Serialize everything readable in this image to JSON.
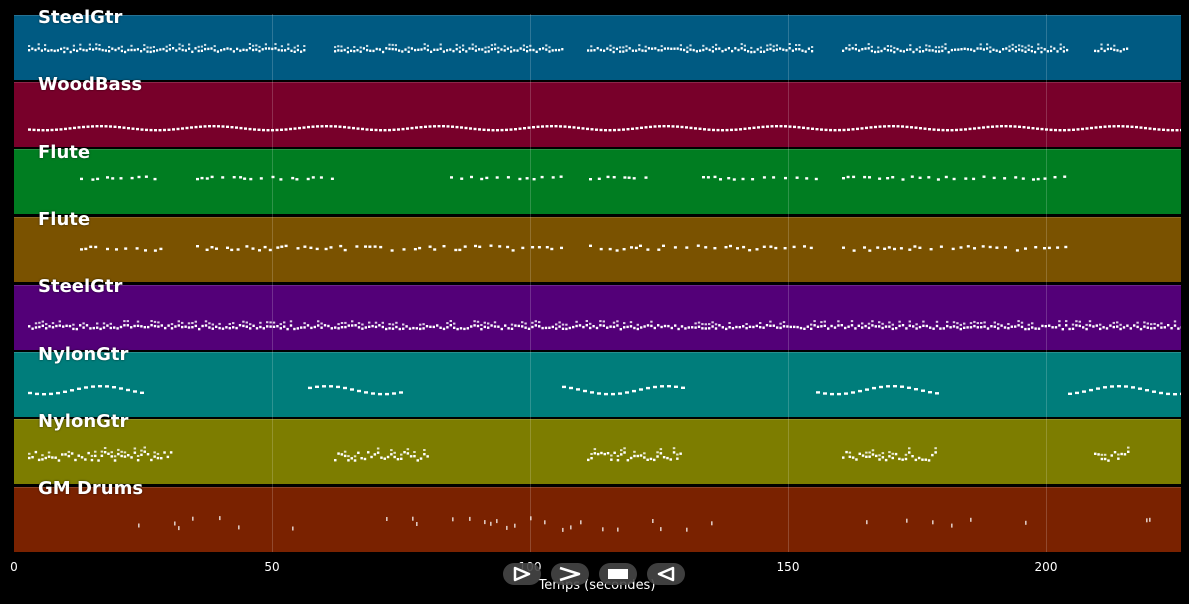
{
  "tracks": [
    {
      "name": "SteelGtr",
      "color": "#005a82"
    },
    {
      "name": "WoodBass",
      "color": "#78002a"
    },
    {
      "name": "Flute",
      "color": "#007d21"
    },
    {
      "name": "Flute",
      "color": "#7a5200"
    },
    {
      "name": "SteelGtr",
      "color": "#530078"
    },
    {
      "name": "NylonGtr",
      "color": "#007d7b"
    },
    {
      "name": "NylonGtr",
      "color": "#7d7d00"
    },
    {
      "name": "GM Drums",
      "color": "#7a2200"
    }
  ],
  "axis": {
    "title": "Temps (secondes)",
    "ticks": [
      "0",
      "50",
      "100",
      "150",
      "200"
    ]
  },
  "controls": [
    {
      "name": "play-outline-icon"
    },
    {
      "name": "forward-icon"
    },
    {
      "name": "stop-icon"
    },
    {
      "name": "rewind-icon"
    }
  ]
}
